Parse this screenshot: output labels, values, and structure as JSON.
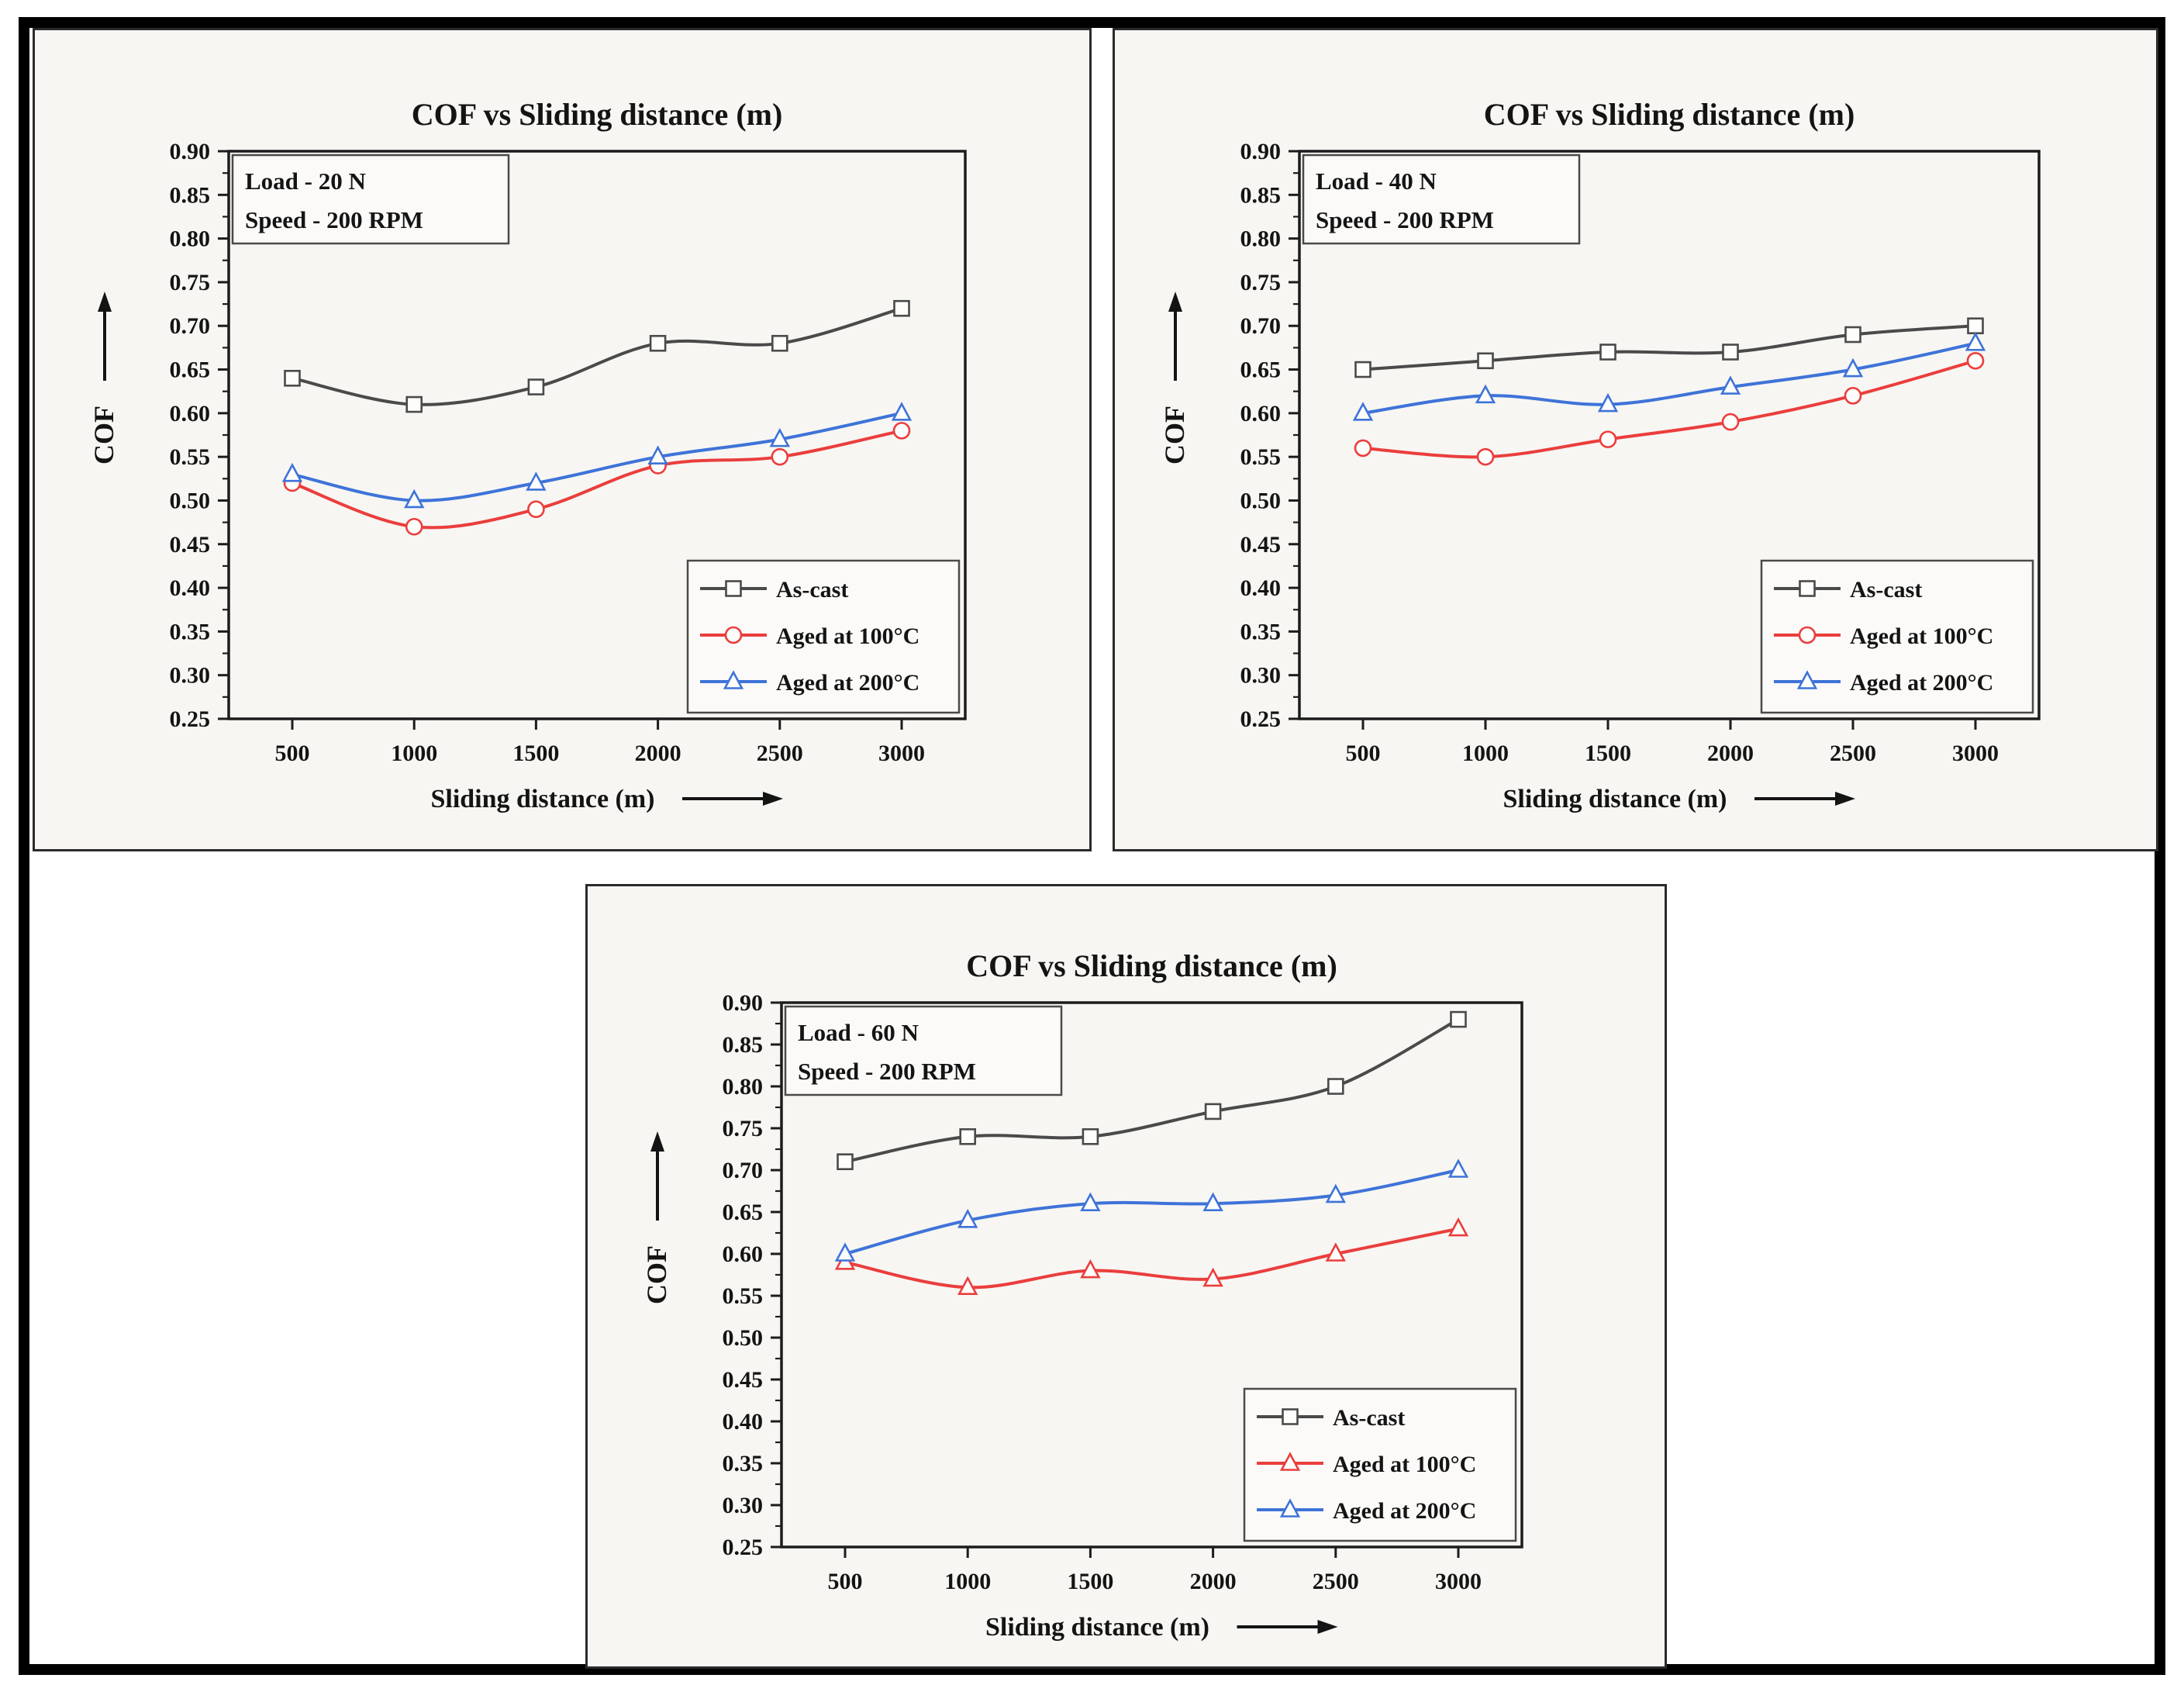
{
  "page": {
    "background": "#ffffff",
    "frame_color": "#000000",
    "panel_background": "#f7f6f3"
  },
  "chart_data": [
    {
      "type": "line",
      "title": "COF vs Sliding distance (m)",
      "annotation": {
        "line1": "Load - 20 N",
        "line2": "Speed - 200 RPM"
      },
      "xlabel": "Sliding distance (m)",
      "ylabel": "COF",
      "x": [
        500,
        1000,
        1500,
        2000,
        2500,
        3000
      ],
      "xticks": [
        "500",
        "1000",
        "1500",
        "2000",
        "2500",
        "3000"
      ],
      "yticks": [
        "0.25",
        "0.30",
        "0.35",
        "0.40",
        "0.45",
        "0.50",
        "0.55",
        "0.60",
        "0.65",
        "0.70",
        "0.75",
        "0.80",
        "0.85",
        "0.90"
      ],
      "ylim": [
        0.25,
        0.9
      ],
      "grid": false,
      "legend_position": "bottom-right",
      "series": [
        {
          "name": "As-cast",
          "marker": "square",
          "color": "#4a4a4a",
          "values": [
            0.64,
            0.61,
            0.63,
            0.68,
            0.68,
            0.72
          ]
        },
        {
          "name": "Aged at 100°C",
          "marker": "circle",
          "color": "#ea3e3c",
          "values": [
            0.52,
            0.47,
            0.49,
            0.54,
            0.55,
            0.58
          ]
        },
        {
          "name": "Aged at 200°C",
          "marker": "triangle",
          "color": "#3e73d8",
          "values": [
            0.53,
            0.5,
            0.52,
            0.55,
            0.57,
            0.6
          ]
        }
      ]
    },
    {
      "type": "line",
      "title": "COF vs Sliding distance (m)",
      "annotation": {
        "line1": "Load - 40 N",
        "line2": "Speed - 200 RPM"
      },
      "xlabel": "Sliding distance (m)",
      "ylabel": "COF",
      "x": [
        500,
        1000,
        1500,
        2000,
        2500,
        3000
      ],
      "xticks": [
        "500",
        "1000",
        "1500",
        "2000",
        "2500",
        "3000"
      ],
      "yticks": [
        "0.25",
        "0.30",
        "0.35",
        "0.40",
        "0.45",
        "0.50",
        "0.55",
        "0.60",
        "0.65",
        "0.70",
        "0.75",
        "0.80",
        "0.85",
        "0.90"
      ],
      "ylim": [
        0.25,
        0.9
      ],
      "grid": false,
      "legend_position": "bottom-right",
      "series": [
        {
          "name": "As-cast",
          "marker": "square",
          "color": "#4a4a4a",
          "values": [
            0.65,
            0.66,
            0.67,
            0.67,
            0.69,
            0.7
          ]
        },
        {
          "name": "Aged at 100°C",
          "marker": "circle",
          "color": "#ea3e3c",
          "values": [
            0.56,
            0.55,
            0.57,
            0.59,
            0.62,
            0.66
          ]
        },
        {
          "name": "Aged at 200°C",
          "marker": "triangle",
          "color": "#3e73d8",
          "values": [
            0.6,
            0.62,
            0.61,
            0.63,
            0.65,
            0.68
          ]
        }
      ]
    },
    {
      "type": "line",
      "title": "COF vs Sliding distance (m)",
      "annotation": {
        "line1": "Load - 60 N",
        "line2": "Speed - 200 RPM"
      },
      "xlabel": "Sliding distance (m)",
      "ylabel": "COF",
      "x": [
        500,
        1000,
        1500,
        2000,
        2500,
        3000
      ],
      "xticks": [
        "500",
        "1000",
        "1500",
        "2000",
        "2500",
        "3000"
      ],
      "yticks": [
        "0.25",
        "0.30",
        "0.35",
        "0.40",
        "0.45",
        "0.50",
        "0.55",
        "0.60",
        "0.65",
        "0.70",
        "0.75",
        "0.80",
        "0.85",
        "0.90"
      ],
      "ylim": [
        0.25,
        0.9
      ],
      "grid": false,
      "legend_position": "bottom-right",
      "series": [
        {
          "name": "As-cast",
          "marker": "square",
          "color": "#4a4a4a",
          "values": [
            0.71,
            0.74,
            0.74,
            0.77,
            0.8,
            0.88
          ]
        },
        {
          "name": "Aged at 100°C",
          "marker": "triangle",
          "color": "#ea3e3c",
          "values": [
            0.59,
            0.56,
            0.58,
            0.57,
            0.6,
            0.63
          ]
        },
        {
          "name": "Aged at 200°C",
          "marker": "triangle",
          "color": "#3e73d8",
          "values": [
            0.6,
            0.64,
            0.66,
            0.66,
            0.67,
            0.7
          ]
        }
      ]
    }
  ]
}
